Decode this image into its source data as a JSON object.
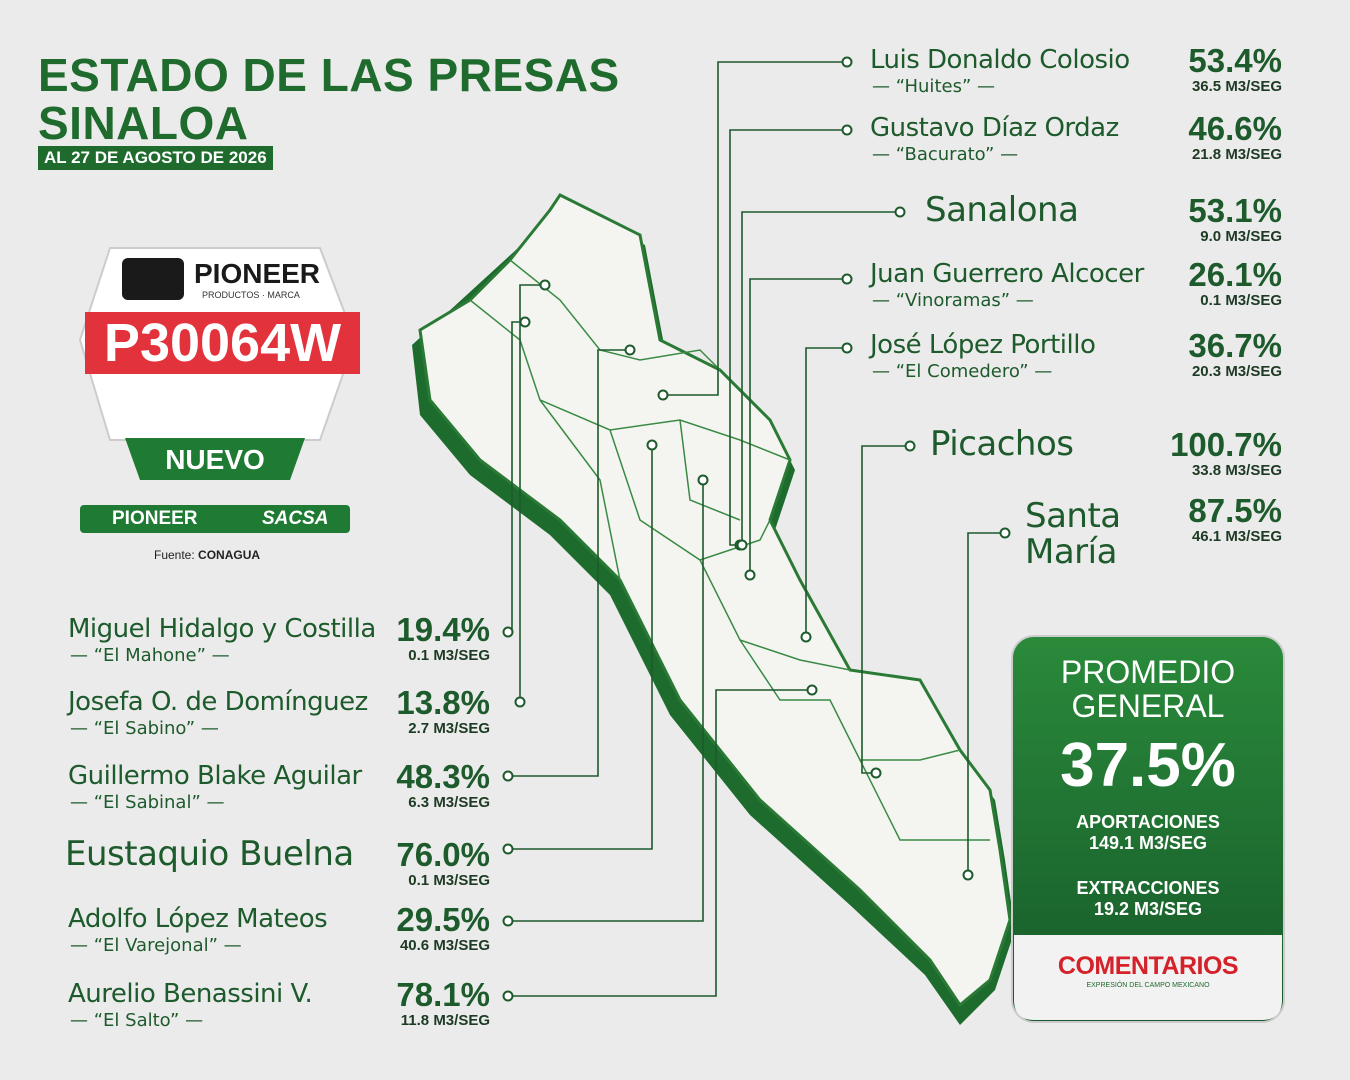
{
  "header": {
    "title_lines": [
      "ESTADO DE LAS PRESAS",
      "SINALOA"
    ],
    "date": "AL 27 DE AGOSTO DE 2026"
  },
  "badge": {
    "brand": "PIONEER",
    "tagline": "PRODUCTOS · MARCA",
    "product": "P30064W",
    "label": "NUEVO"
  },
  "logos": {
    "pioneer": "PIONEER",
    "sacsa": "SACSA"
  },
  "source": {
    "label": "Fuente:",
    "value": "CONAGUA"
  },
  "dams": {
    "right": [
      {
        "name": "Luis Donaldo Colosio",
        "nickname": "— “Huites” —",
        "percent": "53.4%",
        "flow": "36.5 M3/SEG"
      },
      {
        "name": "Gustavo Díaz Ordaz",
        "nickname": "— “Bacurato” —",
        "percent": "46.6%",
        "flow": "21.8 M3/SEG"
      },
      {
        "name": "Sanalona",
        "percent": "53.1%",
        "flow": "9.0 M3/SEG"
      },
      {
        "name": "Juan Guerrero Alcocer",
        "nickname": "— “Vinoramas” —",
        "percent": "26.1%",
        "flow": "0.1 M3/SEG"
      },
      {
        "name": "José López Portillo",
        "nickname": "— “El Comedero” —",
        "percent": "36.7%",
        "flow": "20.3 M3/SEG"
      },
      {
        "name": "Picachos",
        "percent": "100.7%",
        "flow": "33.8 M3/SEG"
      },
      {
        "name": "Santa María",
        "percent": "87.5%",
        "flow": "46.1 M3/SEG"
      }
    ],
    "left": [
      {
        "name": "Miguel Hidalgo y Costilla",
        "nickname": "— “El Mahone” —",
        "percent": "19.4%",
        "flow": "0.1 M3/SEG"
      },
      {
        "name": "Josefa O. de Domínguez",
        "nickname": "— “El Sabino” —",
        "percent": "13.8%",
        "flow": "2.7 M3/SEG"
      },
      {
        "name": "Guillermo Blake Aguilar",
        "nickname": "— “El Sabinal” —",
        "percent": "48.3%",
        "flow": "6.3 M3/SEG"
      },
      {
        "name": "Eustaquio Buelna",
        "percent": "76.0%",
        "flow": "0.1 M3/SEG"
      },
      {
        "name": "Adolfo López Mateos",
        "nickname": "— “El Varejonal” —",
        "percent": "29.5%",
        "flow": "40.6 M3/SEG"
      },
      {
        "name": "Aurelio Benassini V.",
        "nickname": "— “El Salto” —",
        "percent": "78.1%",
        "flow": "11.8 M3/SEG"
      }
    ]
  },
  "summary": {
    "title_lines": [
      "PROMEDIO",
      "GENERAL"
    ],
    "percent": "37.5%",
    "inflow_label": "APORTACIONES",
    "inflow": "149.1 M3/SEG",
    "outflow_label": "EXTRACCIONES",
    "outflow": "19.2 M3/SEG"
  },
  "footer_brand": {
    "name": "COMENTARIOS",
    "tagline": "EXPRESIÓN DEL CAMPO MEXICANO"
  }
}
